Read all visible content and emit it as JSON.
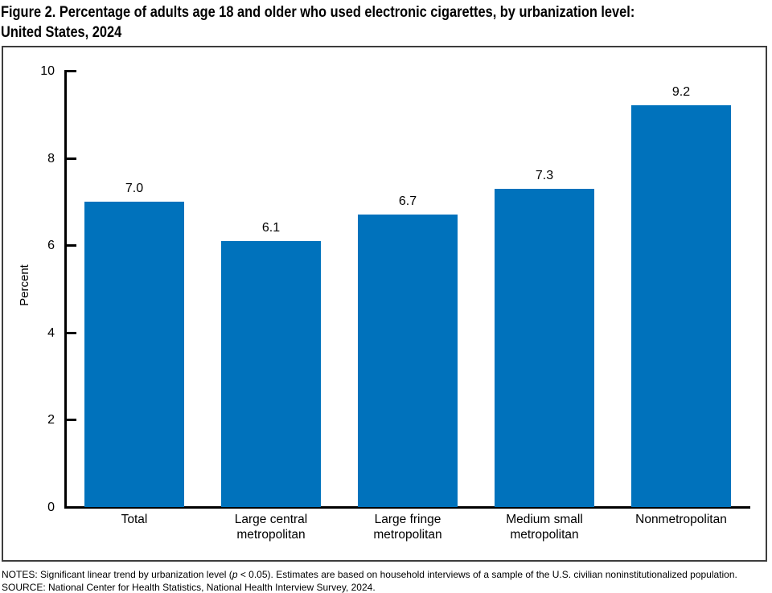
{
  "title": "Figure 2. Percentage of adults age 18 and older who used electronic cigarettes, by urbanization level:\nUnited States, 2024",
  "chart_data": {
    "type": "bar",
    "categories": [
      "Total",
      "Large central\nmetropolitan",
      "Large fringe\nmetropolitan",
      "Medium small\nmetropolitan",
      "Nonmetropolitan"
    ],
    "values": [
      7.0,
      6.1,
      6.7,
      7.3,
      9.2
    ],
    "value_labels": [
      "7.0",
      "6.1",
      "6.7",
      "7.3",
      "9.2"
    ],
    "title": "",
    "xlabel": "",
    "ylabel": "Percent",
    "ylim": [
      0,
      10
    ],
    "yticks": [
      0,
      2,
      4,
      6,
      8,
      10
    ],
    "grid": false,
    "legend": "none",
    "bar_color": "#0072BC",
    "axis_color": "#000000"
  },
  "notes": {
    "line1_prefix": "NOTES: Significant linear trend by urbanization level (",
    "line1_p": "p",
    "line1_suffix": " < 0.05). Estimates are based on household interviews of a sample of the U.S. civilian noninstitutionalized population.",
    "line2": "SOURCE: National Center for Health Statistics, National Health Interview Survey, 2024."
  }
}
